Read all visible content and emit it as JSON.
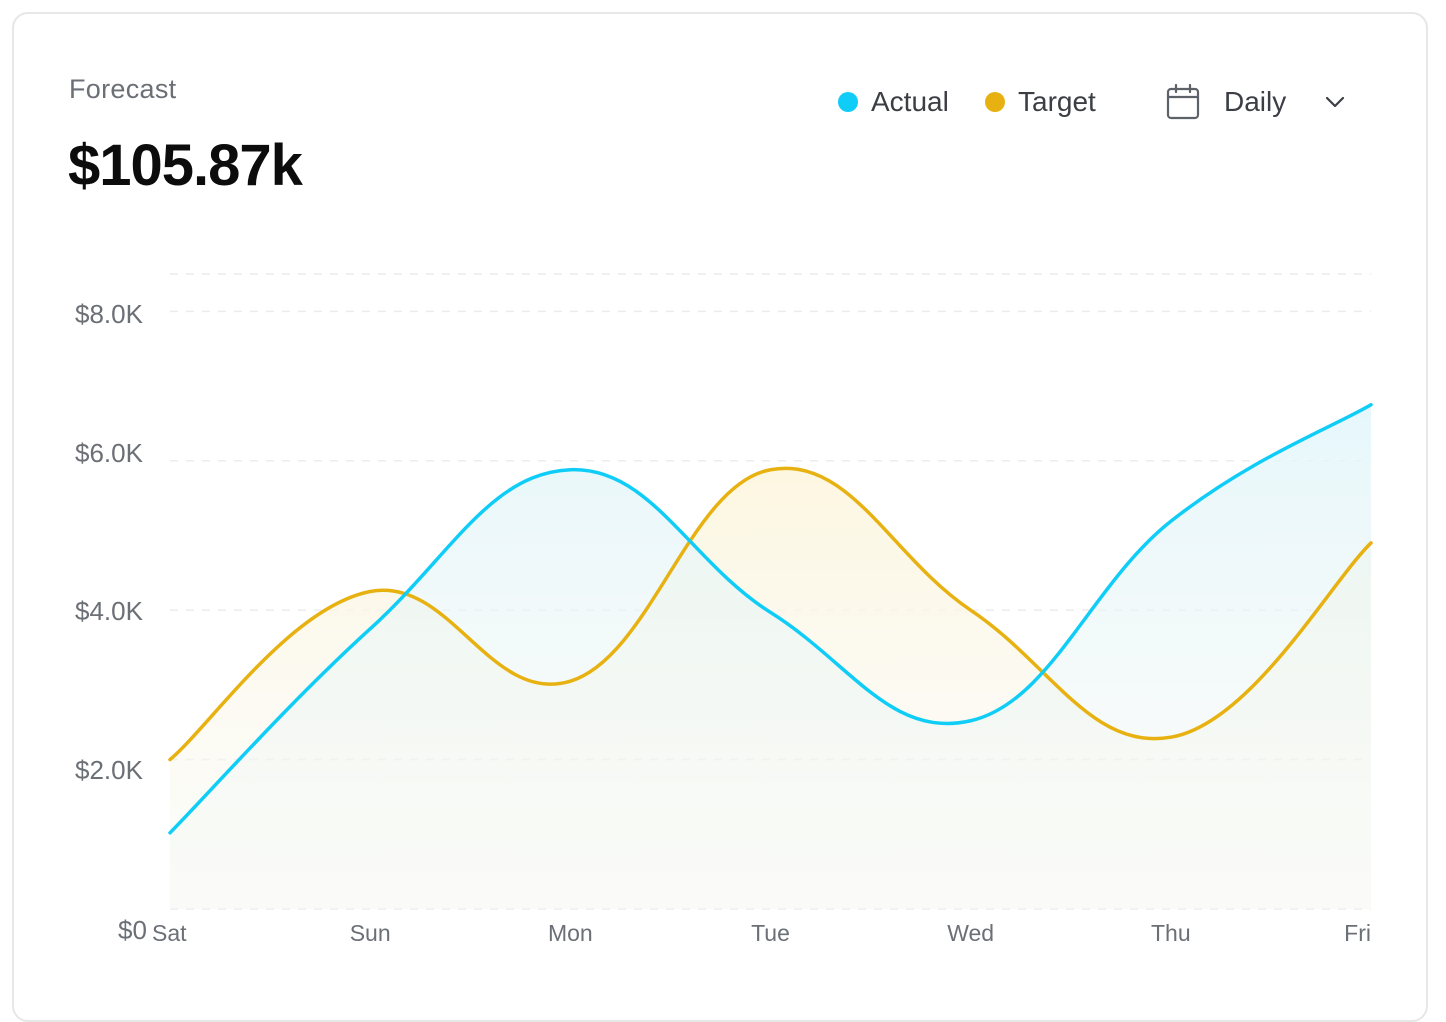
{
  "header": {
    "title": "Forecast",
    "amount": "$105.87k"
  },
  "legend": [
    {
      "label": "Actual",
      "color": "#10cdf7"
    },
    {
      "label": "Target",
      "color": "#e7b211"
    }
  ],
  "period": {
    "label": "Daily",
    "icon": "calendar-icon",
    "dropdown_icon": "chevron-down-icon"
  },
  "chart_data": {
    "type": "area",
    "categories": [
      "Sat",
      "Sun",
      "Mon",
      "Tue",
      "Wed",
      "Thu",
      "Fri"
    ],
    "series": [
      {
        "name": "Actual",
        "color": "#10cdf7",
        "values": [
          1020,
          3750,
          5880,
          3970,
          2520,
          5190,
          6750
        ]
      },
      {
        "name": "Target",
        "color": "#e7b211",
        "values": [
          2000,
          4250,
          3050,
          5880,
          4000,
          2300,
          4900
        ]
      }
    ],
    "yticks": [
      "$0",
      "$2.0K",
      "$4.0K",
      "$6.0K",
      "$8.0K"
    ],
    "ylim": [
      0,
      8500
    ],
    "grid": true,
    "legend_position": "top-right"
  }
}
